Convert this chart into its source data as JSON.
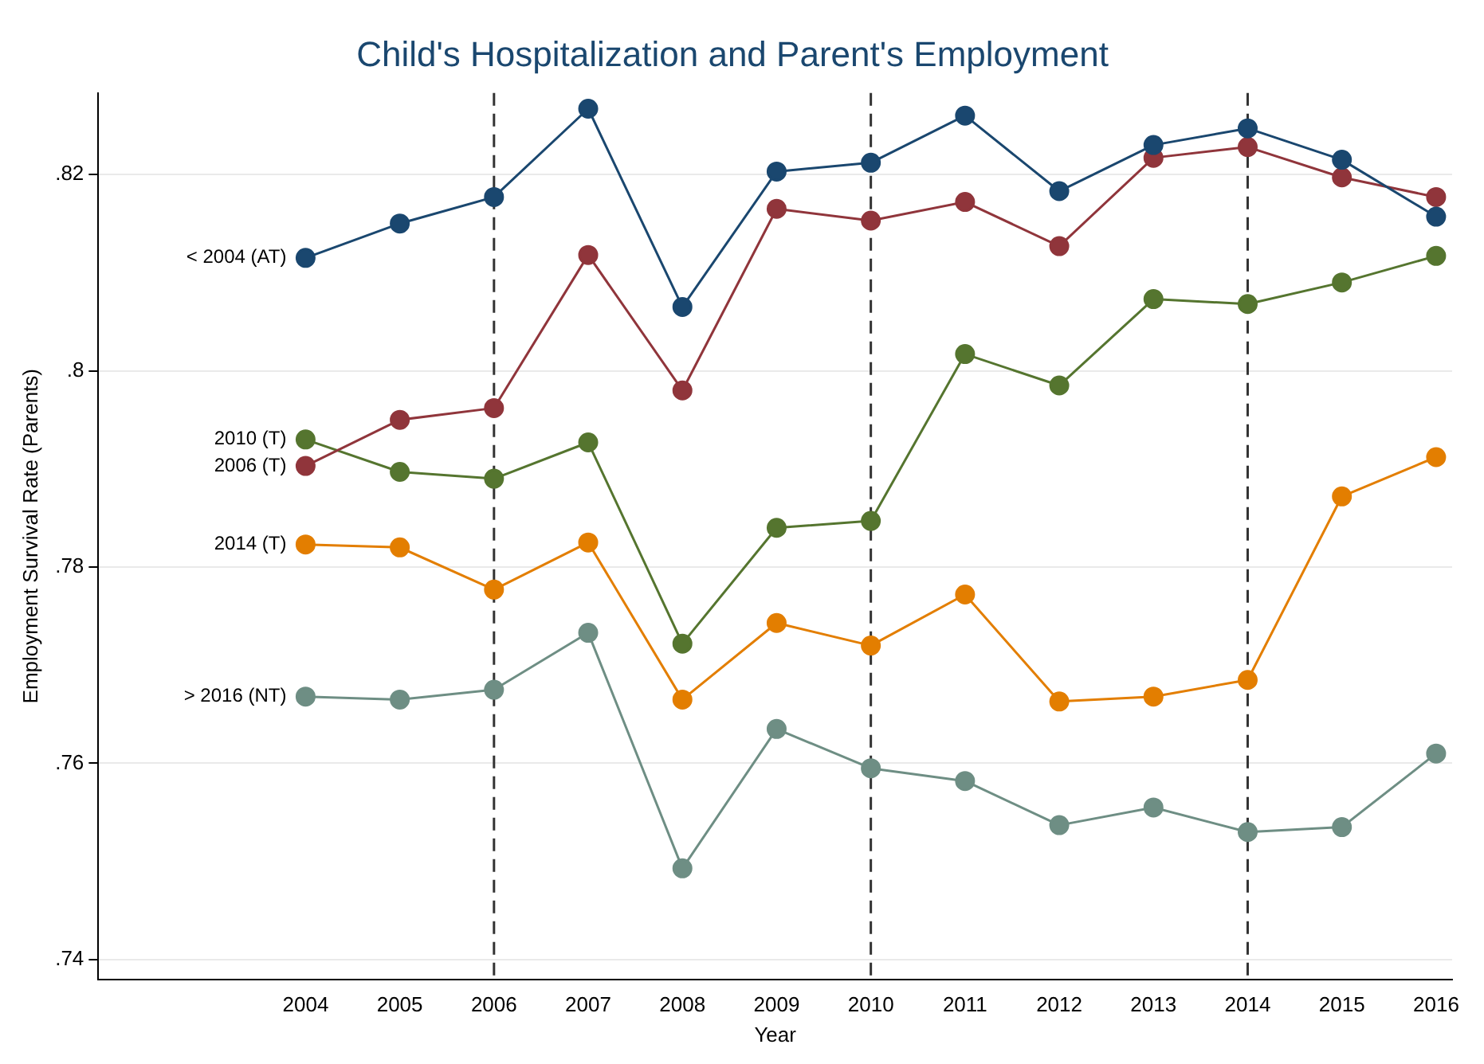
{
  "chart_data": {
    "type": "line",
    "title": "Child's Hospitalization and Parent's Employment",
    "xlabel": "Year",
    "ylabel": "Employment Survival Rate (Parents)",
    "x": [
      2004,
      2005,
      2006,
      2007,
      2008,
      2009,
      2010,
      2011,
      2012,
      2013,
      2014,
      2015,
      2016
    ],
    "series": [
      {
        "name": "< 2004 (AT)",
        "color": "#1a476f",
        "values": [
          0.8115,
          0.815,
          0.8177,
          0.8267,
          0.8065,
          0.8203,
          0.8212,
          0.826,
          0.8183,
          0.823,
          0.8247,
          0.8215,
          0.8157
        ]
      },
      {
        "name": "2006 (T)",
        "color": "#90353b",
        "values": [
          0.7903,
          0.795,
          0.7962,
          0.8118,
          0.798,
          0.8165,
          0.8153,
          0.8172,
          0.8127,
          0.8217,
          0.8228,
          0.8197,
          0.8177
        ]
      },
      {
        "name": "2010 (T)",
        "color": "#55752f",
        "values": [
          0.793,
          0.7897,
          0.789,
          0.7927,
          0.7722,
          0.784,
          0.7847,
          0.8017,
          0.7985,
          0.8073,
          0.8068,
          0.809,
          0.8117
        ]
      },
      {
        "name": "2014 (T)",
        "color": "#e37e00",
        "values": [
          0.7823,
          0.782,
          0.7777,
          0.7825,
          0.7665,
          0.7743,
          0.772,
          0.7772,
          0.7663,
          0.7668,
          0.7685,
          0.7872,
          0.7912
        ]
      },
      {
        "name": "> 2016 (NT)",
        "color": "#6e8e84",
        "values": [
          0.7668,
          0.7665,
          0.7675,
          0.7733,
          0.7493,
          0.7635,
          0.7595,
          0.7582,
          0.7537,
          0.7555,
          0.753,
          0.7535,
          0.761
        ]
      }
    ],
    "xlim": [
      2001.8,
      2016.17
    ],
    "xticks": [
      2004,
      2005,
      2006,
      2007,
      2008,
      2009,
      2010,
      2011,
      2012,
      2013,
      2014,
      2015,
      2016
    ],
    "ylim": [
      0.738,
      0.8283
    ],
    "yticks": [
      {
        "value": 0.74,
        "label": ".74"
      },
      {
        "value": 0.76,
        "label": ".76"
      },
      {
        "value": 0.78,
        "label": ".78"
      },
      {
        "value": 0.8,
        "label": ".8"
      },
      {
        "value": 0.82,
        "label": ".82"
      }
    ],
    "ref_lines": [
      {
        "axis": "x",
        "value": 2006,
        "color": "#333333",
        "line_style": "dashed"
      },
      {
        "axis": "x",
        "value": 2010,
        "color": "#333333",
        "line_style": "dashed"
      },
      {
        "axis": "x",
        "value": 2014,
        "color": "#333333",
        "line_style": "dashed"
      }
    ],
    "grid": "y",
    "legend": false,
    "marker": "circle",
    "line_style": "solid"
  }
}
